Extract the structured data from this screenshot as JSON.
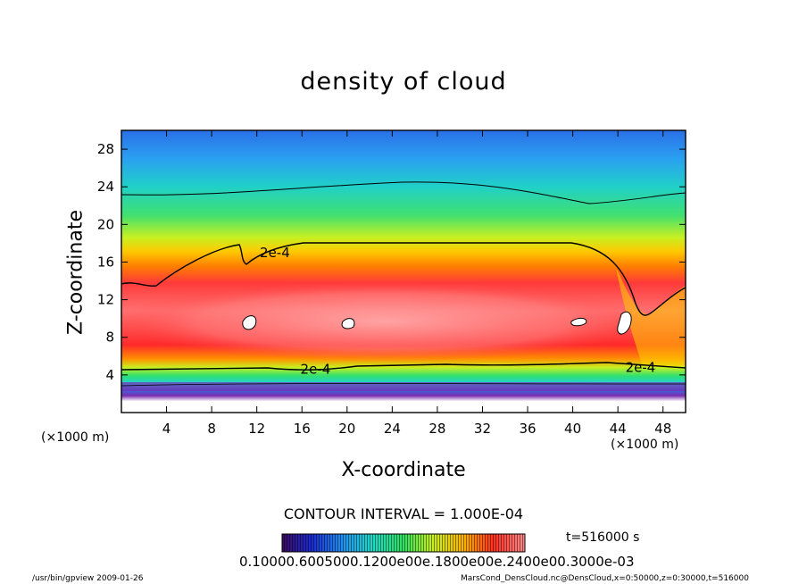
{
  "chart_data": {
    "type": "heatmap",
    "title": "density of cloud",
    "xlabel": "X-coordinate",
    "ylabel": "Z-coordinate",
    "x_unit": "(×1000 m)",
    "xlim": [
      0,
      50
    ],
    "ylim": [
      0,
      30
    ],
    "x_ticks": [
      4,
      8,
      12,
      16,
      20,
      24,
      28,
      32,
      36,
      40,
      44,
      48
    ],
    "y_ticks": [
      4,
      8,
      12,
      16,
      20,
      24,
      28
    ],
    "contour_labels": [
      {
        "text": "2e-4",
        "x": 13.6,
        "z": 17.0
      },
      {
        "text": "2e-4",
        "x": 17.2,
        "z": 4.6
      },
      {
        "text": "2e-4",
        "x": 46.0,
        "z": 4.8
      }
    ],
    "contour_interval": "CONTOUR INTERVAL = 1.000E-04",
    "time": "t=516000 s",
    "colorbar_labels": "0.10000.6005000.1200e00e.1800e00e.2400e00.3000e-03",
    "colormap": [
      "#5a1a8a",
      "#1e4fd8",
      "#20c8e0",
      "#30e070",
      "#b8f020",
      "#ffd800",
      "#ff7a00",
      "#ff2020",
      "#ff9090"
    ],
    "grid": false
  },
  "footer": {
    "program": "/usr/bin/gpview   2009-01-26",
    "source": "MarsCond_DensCloud.nc@DensCloud,x=0:50000,z=0:30000,t=516000"
  }
}
